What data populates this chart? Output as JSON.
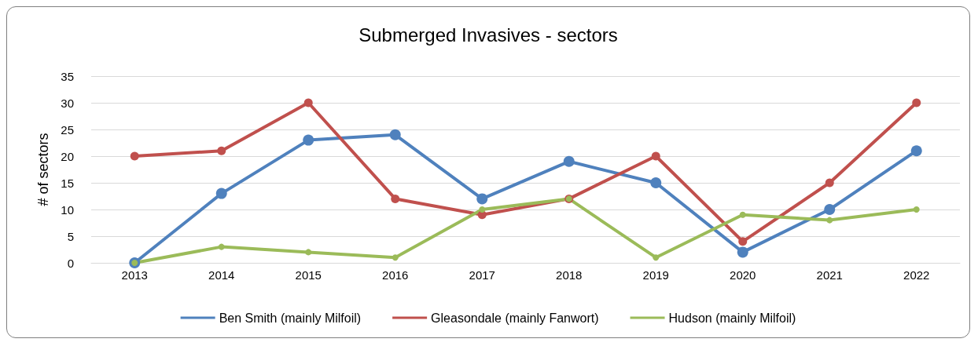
{
  "chart_data": {
    "type": "line",
    "title": "Submerged Invasives - sectors",
    "ylabel": "# of sectors",
    "categories": [
      "2013",
      "2014",
      "2015",
      "2016",
      "2017",
      "2018",
      "2019",
      "2020",
      "2021",
      "2022"
    ],
    "series": [
      {
        "name": "Ben Smith (mainly Milfoil)",
        "color": "#4f81bd",
        "values": [
          0,
          13,
          23,
          24,
          12,
          19,
          15,
          2,
          10,
          21
        ]
      },
      {
        "name": "Gleasondale (mainly Fanwort)",
        "color": "#c0504d",
        "values": [
          20,
          21,
          30,
          12,
          9,
          12,
          20,
          4,
          15,
          30
        ]
      },
      {
        "name": "Hudson (mainly Milfoil)",
        "color": "#9bbb59",
        "values": [
          0,
          3,
          2,
          1,
          10,
          12,
          1,
          9,
          8,
          10
        ]
      }
    ],
    "ylim": [
      0,
      35
    ],
    "yticks": [
      0,
      5,
      10,
      15,
      20,
      25,
      30,
      35
    ],
    "grid": "y",
    "legend": "bottom",
    "marker": "circle",
    "line_style": "solid"
  }
}
